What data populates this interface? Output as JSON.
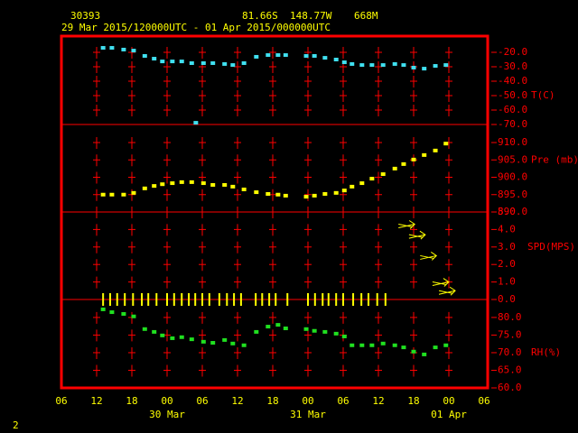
{
  "header": {
    "station": "30393",
    "lat": "81.66S",
    "lon": "148.77W",
    "elevation": "668M",
    "period": "29 Mar 2015/120000UTC - 01 Apr 2015/000000UTC",
    "page": "2"
  },
  "axis": {
    "xlim": [
      0,
      72
    ],
    "xticks": [
      {
        "value": 0,
        "label": "06"
      },
      {
        "value": 6,
        "label": "12"
      },
      {
        "value": 12,
        "label": "18"
      },
      {
        "value": 18,
        "label": "00"
      },
      {
        "value": 24,
        "label": "06"
      },
      {
        "value": 30,
        "label": "12"
      },
      {
        "value": 36,
        "label": "18"
      },
      {
        "value": 42,
        "label": "00"
      },
      {
        "value": 48,
        "label": "06"
      },
      {
        "value": 54,
        "label": "12"
      },
      {
        "value": 60,
        "label": "18"
      },
      {
        "value": 66,
        "label": "00"
      },
      {
        "value": 72,
        "label": "06"
      }
    ],
    "date_labels": [
      {
        "value": 18,
        "label": "30 Mar"
      },
      {
        "value": 42,
        "label": "31 Mar"
      },
      {
        "value": 66,
        "label": "01 Apr"
      }
    ]
  },
  "chart_data": [
    {
      "type": "scatter",
      "label": "T(C)",
      "color": "#40e0f0",
      "ylim": [
        -70,
        -8.75
      ],
      "yticks": [
        {
          "value": -70,
          "label": "-70.0"
        },
        {
          "value": -60,
          "label": "-60.0"
        },
        {
          "value": -50,
          "label": "-50.0"
        },
        {
          "value": -40,
          "label": "-40.0"
        },
        {
          "value": -30,
          "label": "-30.0"
        },
        {
          "value": -20,
          "label": "-20.0"
        }
      ],
      "x": [
        7.1,
        8.6,
        10.6,
        12.3,
        14.2,
        15.8,
        17.2,
        18.9,
        20.5,
        22.2,
        22.9,
        24.2,
        25.8,
        27.8,
        29.2,
        31.1,
        33.2,
        35.2,
        36.9,
        38.2,
        41.7,
        43.1,
        44.9,
        46.8,
        48.2,
        49.5,
        51.2,
        52.9,
        54.8,
        56.8,
        58.3,
        60,
        61.8,
        63.7,
        65.5
      ],
      "values": [
        -16.9,
        -16.9,
        -18.1,
        -18.8,
        -22.5,
        -24.4,
        -26.3,
        -26.3,
        -26.3,
        -27.5,
        -68.8,
        -27.5,
        -27.5,
        -28.1,
        -28.8,
        -27.5,
        -23.1,
        -21.9,
        -21.9,
        -21.9,
        -22.5,
        -22.5,
        -23.8,
        -25,
        -26.9,
        -28.1,
        -28.8,
        -28.8,
        -28.8,
        -28.1,
        -28.8,
        -30.6,
        -31.3,
        -29.4,
        -28.8
      ]
    },
    {
      "type": "scatter",
      "label": "Pre (mb)",
      "color": "#ffff00",
      "ylim": [
        890,
        915.2
      ],
      "yticks": [
        {
          "value": 890,
          "label": "890.0"
        },
        {
          "value": 895,
          "label": "895.0"
        },
        {
          "value": 900,
          "label": "900.0"
        },
        {
          "value": 905,
          "label": "905.0"
        },
        {
          "value": 910,
          "label": "910.0"
        }
      ],
      "x": [
        7.1,
        8.6,
        10.6,
        12.3,
        14.2,
        15.8,
        17.2,
        18.9,
        20.5,
        22.2,
        24.2,
        25.8,
        27.8,
        29.2,
        31.1,
        33.2,
        35.2,
        36.9,
        38.2,
        41.7,
        43.1,
        44.9,
        46.8,
        48.2,
        49.5,
        51.2,
        52.9,
        54.8,
        56.8,
        58.3,
        60,
        61.8,
        63.7,
        65.5
      ],
      "values": [
        895,
        895,
        895,
        895.5,
        896.8,
        897.5,
        898,
        898.3,
        898.6,
        898.6,
        898.3,
        897.8,
        897.8,
        897.3,
        896.5,
        895.7,
        895.2,
        895,
        894.7,
        894.4,
        894.7,
        895.2,
        895.5,
        896.2,
        897.3,
        898.3,
        899.6,
        900.9,
        902.5,
        903.8,
        905.1,
        906.4,
        907.7,
        909.7
      ]
    },
    {
      "type": "wind",
      "label": "SPD(MPS)",
      "color": "#ffff00",
      "ylim": [
        0,
        5
      ],
      "yticks": [
        {
          "value": 0,
          "label": "0.0"
        },
        {
          "value": 1,
          "label": "1.0"
        },
        {
          "value": 2,
          "label": "2.0"
        },
        {
          "value": 3,
          "label": "3.0"
        },
        {
          "value": 4,
          "label": "4.0"
        },
        {
          "value": 5,
          "label": "5.0"
        }
      ],
      "series": [
        {
          "marker": "arrow",
          "x": [
            58.8,
            60.6,
            62.5,
            64.6,
            65.7
          ],
          "values": [
            4.2,
            3.6,
            2.4,
            0.9,
            0.4
          ]
        },
        {
          "marker": "bar",
          "x": [
            7.1,
            8.3,
            9.5,
            10.8,
            12.2,
            13.7,
            14.8,
            16.2,
            18,
            19.2,
            20.5,
            21.7,
            22.8,
            24,
            25.2,
            26.9,
            28.2,
            29.4,
            30.6,
            33.1,
            34.2,
            35.4,
            36.5,
            38.5,
            42,
            43.2,
            44.5,
            45.5,
            46.8,
            48,
            49.7,
            51.1,
            52.3,
            53.8,
            55.2
          ],
          "values": [
            0,
            0,
            0,
            0,
            0,
            0,
            0,
            0,
            0,
            0,
            0,
            0,
            0,
            0,
            0,
            0,
            0,
            0,
            0,
            0,
            0,
            0,
            0,
            0,
            0,
            0,
            0,
            0,
            0,
            0,
            0,
            0,
            0,
            0,
            0
          ]
        }
      ]
    },
    {
      "type": "scatter",
      "label": "RH(%)",
      "color": "#20e020",
      "ylim": [
        60,
        85.1
      ],
      "yticks": [
        {
          "value": 60,
          "label": "60.0"
        },
        {
          "value": 65,
          "label": "65.0"
        },
        {
          "value": 70,
          "label": "70.0"
        },
        {
          "value": 75,
          "label": "75.0"
        },
        {
          "value": 80,
          "label": "80.0"
        }
      ],
      "x": [
        7.1,
        8.6,
        10.6,
        12.3,
        14.2,
        15.8,
        17.2,
        18.9,
        20.5,
        22.2,
        24.2,
        25.8,
        27.8,
        29.2,
        31.1,
        33.2,
        35.2,
        36.9,
        38.2,
        41.7,
        43.1,
        44.9,
        46.8,
        48.2,
        49.5,
        51.2,
        52.9,
        54.8,
        56.8,
        58.3,
        60,
        61.8,
        63.7,
        65.5
      ],
      "values": [
        82.3,
        81.5,
        81,
        80.3,
        76.7,
        75.9,
        74.9,
        74.1,
        74.4,
        73.8,
        73.1,
        72.8,
        73.6,
        72.6,
        72.1,
        75.9,
        77.4,
        77.9,
        76.9,
        76.7,
        76.2,
        75.9,
        75.4,
        74.6,
        72.1,
        72.1,
        72.1,
        72.6,
        72.1,
        71.5,
        70.3,
        69.5,
        71.5,
        72.1
      ]
    }
  ]
}
